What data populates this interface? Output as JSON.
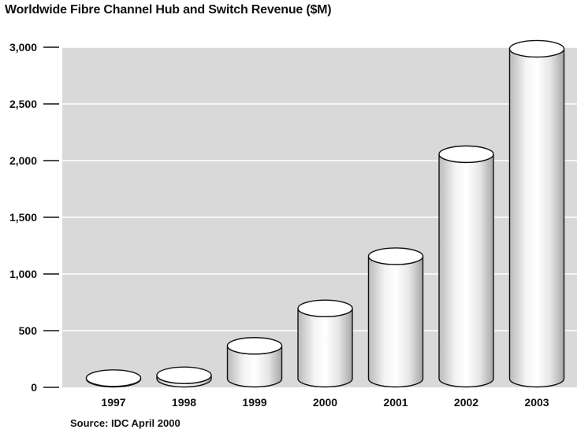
{
  "chart_data": {
    "type": "bar",
    "style": "3d-cylinder",
    "title": "Worldwide Fibre Channel Hub and Switch Revenue ($M)",
    "source": "Source: IDC April 2000",
    "xlabel": "",
    "ylabel": "",
    "categories": [
      "1997",
      "1998",
      "1999",
      "2000",
      "2001",
      "2002",
      "2003"
    ],
    "values": [
      5,
      30,
      290,
      620,
      1080,
      1980,
      2910
    ],
    "ylim": [
      0,
      3000
    ],
    "yticks": [
      0,
      500,
      1000,
      1500,
      2000,
      2500,
      3000
    ],
    "ytick_labels": [
      "0",
      "500",
      "1,000",
      "1,500",
      "2,000",
      "2,500",
      "3,000"
    ],
    "grid": true,
    "plot_background": "#d9d9d9",
    "grid_color": "#ffffff",
    "bar_color": "#ffffff",
    "outline_color": "#111111"
  }
}
